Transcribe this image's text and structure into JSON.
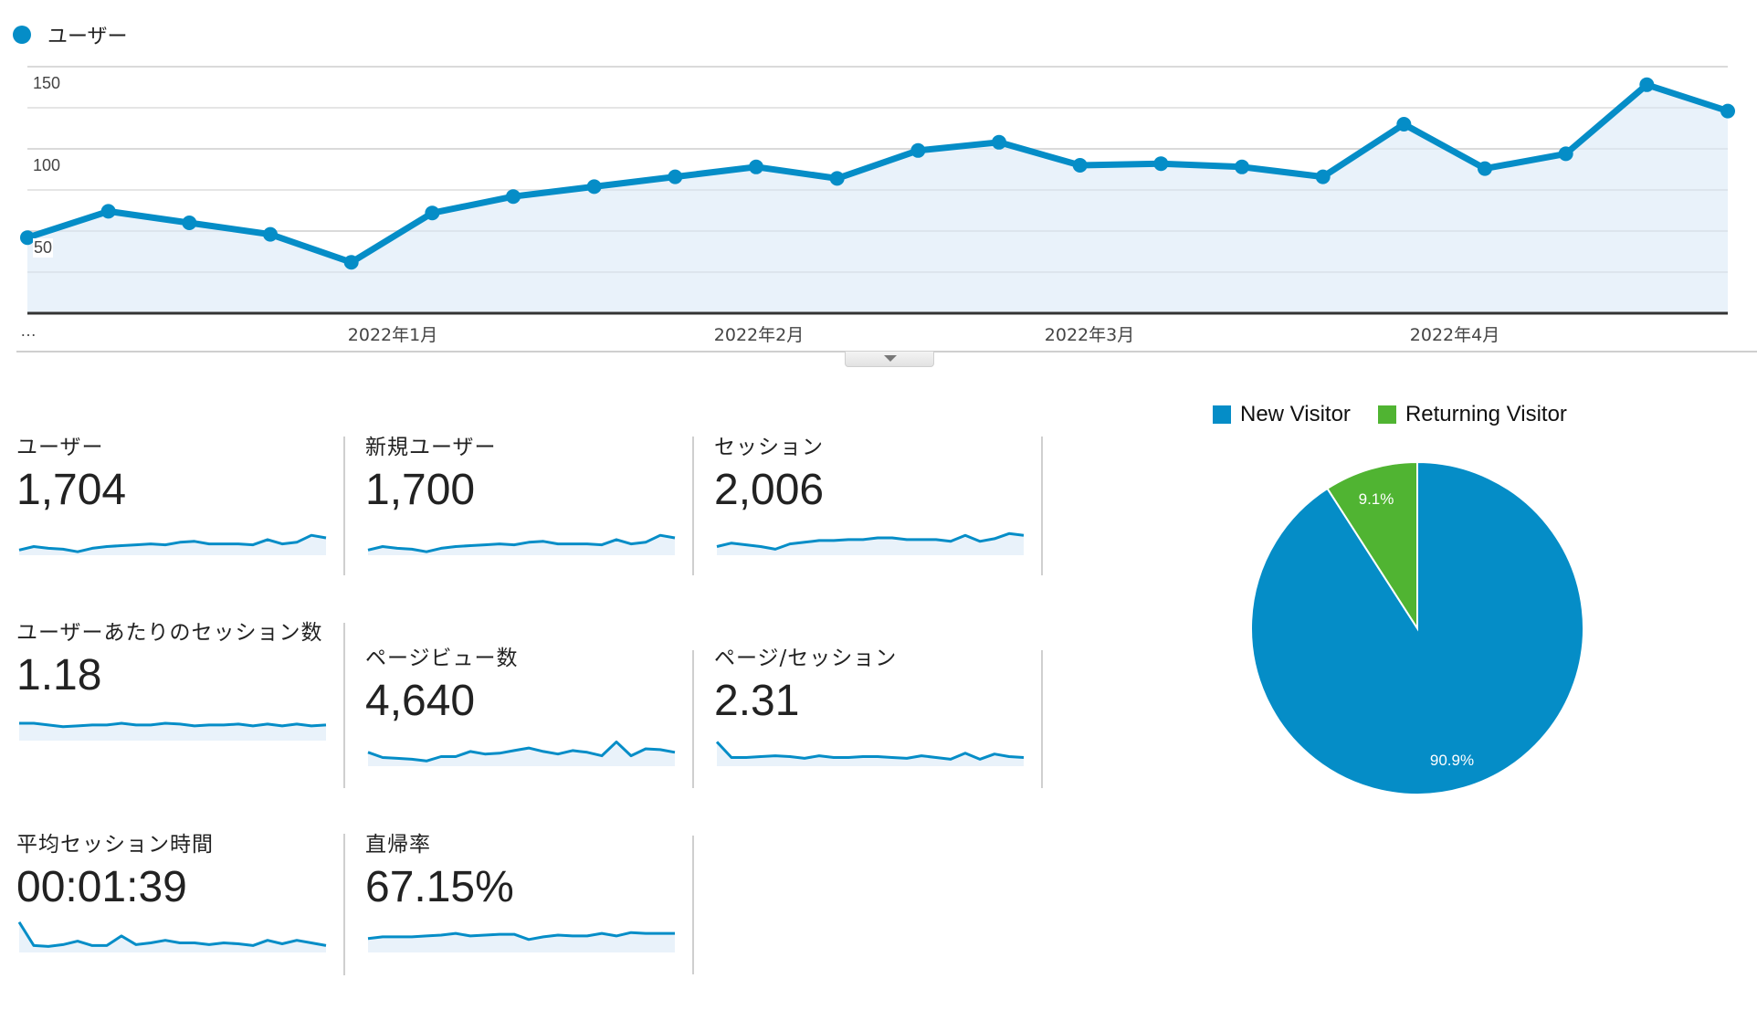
{
  "legend_top": {
    "series_label": "ユーザー",
    "color": "#058DC7"
  },
  "main_chart": {
    "y_ticks": [
      "150",
      "100",
      "50"
    ],
    "x_ellipsis": "…",
    "x_ticks": [
      "2022年1月",
      "2022年2月",
      "2022年3月",
      "2022年4月"
    ]
  },
  "metrics": [
    {
      "label": "ユーザー",
      "value": "1,704",
      "spark": [
        46,
        50,
        48,
        47,
        44,
        48,
        50,
        51,
        52,
        53,
        52,
        55,
        56,
        53,
        53,
        53,
        52,
        58,
        53,
        55,
        63,
        60
      ]
    },
    {
      "label": "新規ユーザー",
      "value": "1,700",
      "spark": [
        46,
        50,
        48,
        47,
        44,
        48,
        50,
        51,
        52,
        53,
        52,
        55,
        56,
        53,
        53,
        53,
        52,
        58,
        53,
        55,
        63,
        60
      ]
    },
    {
      "label": "セッション",
      "value": "2,006",
      "spark": [
        50,
        54,
        52,
        50,
        47,
        53,
        55,
        57,
        57,
        58,
        58,
        60,
        60,
        58,
        58,
        58,
        56,
        63,
        56,
        59,
        65,
        63
      ]
    },
    {
      "label": "ユーザーあたりのセッション数",
      "value": "1.18",
      "spark": [
        60,
        60,
        58,
        56,
        57,
        58,
        58,
        60,
        58,
        58,
        60,
        59,
        57,
        58,
        58,
        59,
        57,
        59,
        57,
        59,
        57,
        58
      ]
    },
    {
      "label": "ページビュー数",
      "value": "4,640",
      "spark": [
        56,
        50,
        49,
        48,
        46,
        51,
        51,
        57,
        54,
        55,
        58,
        61,
        57,
        54,
        58,
        56,
        52,
        68,
        52,
        60,
        59,
        56
      ]
    },
    {
      "label": "ページ/セッション",
      "value": "2.31",
      "spark": [
        68,
        50,
        50,
        51,
        52,
        51,
        49,
        52,
        50,
        50,
        51,
        51,
        50,
        49,
        52,
        50,
        48,
        55,
        48,
        54,
        51,
        50
      ]
    },
    {
      "label": "平均セッション時間",
      "value": "00:01:39",
      "spark": [
        75,
        48,
        47,
        49,
        53,
        48,
        48,
        59,
        49,
        51,
        54,
        51,
        51,
        49,
        51,
        50,
        48,
        54,
        50,
        54,
        51,
        48
      ]
    },
    {
      "label": "直帰率",
      "value": "67.15%",
      "spark": [
        56,
        58,
        58,
        58,
        59,
        60,
        62,
        59,
        60,
        61,
        61,
        55,
        58,
        60,
        59,
        59,
        62,
        59,
        63,
        62,
        62,
        62
      ]
    }
  ],
  "pie_legend": [
    {
      "label": "New Visitor",
      "color": "#058DC7"
    },
    {
      "label": "Returning Visitor",
      "color": "#50B432"
    }
  ],
  "pie_labels": {
    "new": "90.9%",
    "returning": "9.1%"
  },
  "chart_data": [
    {
      "type": "area",
      "title": "ユーザー",
      "legend": [
        "ユーザー"
      ],
      "xlabel": "",
      "ylabel": "",
      "x_tick_labels": [
        "…",
        "2022年1月",
        "2022年2月",
        "2022年3月",
        "2022年4月"
      ],
      "y_ticks": [
        50,
        100,
        150
      ],
      "ylim": [
        0,
        150
      ],
      "grid": true,
      "series": [
        {
          "name": "ユーザー",
          "color": "#058DC7",
          "values": [
            46,
            62,
            55,
            48,
            31,
            61,
            71,
            77,
            83,
            89,
            82,
            99,
            104,
            90,
            91,
            89,
            83,
            115,
            88,
            97,
            139,
            123
          ]
        }
      ]
    },
    {
      "type": "pie",
      "title": "",
      "legend_position": "top",
      "categories": [
        "New Visitor",
        "Returning Visitor"
      ],
      "values": [
        90.9,
        9.1
      ],
      "colors": [
        "#058DC7",
        "#50B432"
      ]
    }
  ]
}
